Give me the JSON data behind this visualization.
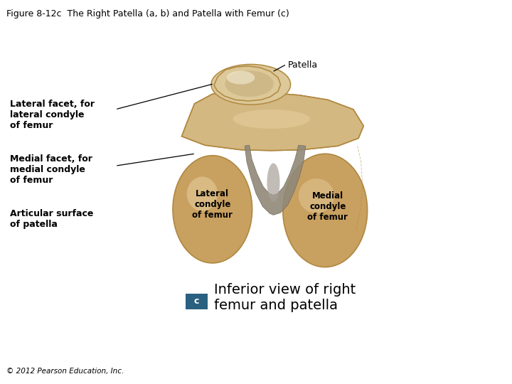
{
  "title": "Figure 8-12c  The Right Patella (a, b) and Patella with Femur (c)",
  "title_fontsize": 9,
  "copyright": "© 2012 Pearson Education, Inc.",
  "copyright_fontsize": 7.5,
  "background_color": "#ffffff",
  "caption_fontsize": 14,
  "bone_colors": {
    "light": "#d4b882",
    "mid": "#c8a060",
    "dark": "#b08840",
    "very_light": "#e8d0a0",
    "groove": "#908878",
    "groove_dark": "#706858",
    "patella_light": "#dcc898",
    "patella_mid": "#c8b080"
  },
  "badge_color": "#2a6080",
  "badge_text_color": "#ffffff",
  "label_fontsize": 9,
  "caption_text": "Inferior view of right\nfemur and patella"
}
